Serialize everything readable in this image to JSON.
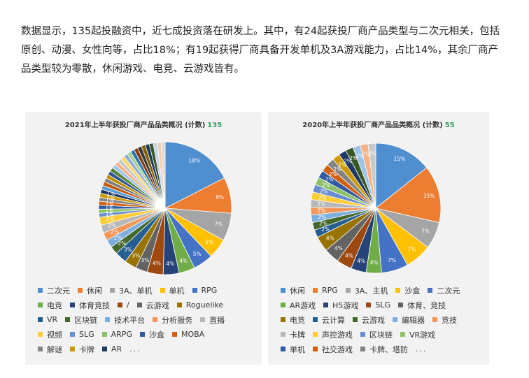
{
  "intro_text": "数据显示，135起投融资中，近七成投资落在研发上。其中，有24起获投厂商产品类型与二次元相关，包括原创、动漫、女性向等，占比18%；有19起获得厂商具备开发单机及3A游戏能力，占比14%，其余厂商产品类型较为零散，休闲游戏、电竞、云游戏皆有。",
  "chart_data": [
    {
      "type": "pie",
      "title": "2021年上半年获投厂商产品品类概况 (计数)",
      "count": "135",
      "legend_more": "...",
      "slices": [
        {
          "label": "二次元",
          "value": 18,
          "color": "#4f8fd0"
        },
        {
          "label": "休闲",
          "value": 9,
          "color": "#ed7d31"
        },
        {
          "label": "3A、单机",
          "value": 7,
          "color": "#a5a5a5"
        },
        {
          "label": "单机",
          "value": 5,
          "color": "#ffc000"
        },
        {
          "label": "RPG",
          "value": 5,
          "color": "#4472c4"
        },
        {
          "label": "电竞",
          "value": 4,
          "color": "#70ad47"
        },
        {
          "label": "体育竞技",
          "value": 4,
          "color": "#264478"
        },
        {
          "label": "/",
          "value": 4,
          "color": "#9e480e"
        },
        {
          "label": "云游戏",
          "value": 3,
          "color": "#636363"
        },
        {
          "label": "Roguelike",
          "value": 3,
          "color": "#997300"
        },
        {
          "label": "VR",
          "value": 3,
          "color": "#255e91"
        },
        {
          "label": "区块链",
          "value": 2,
          "color": "#43682b"
        },
        {
          "label": "技术平台",
          "value": 2,
          "color": "#7cafdd"
        },
        {
          "label": "分析服务",
          "value": 2,
          "color": "#f1975a"
        },
        {
          "label": "直播",
          "value": 2,
          "color": "#b7b7b7"
        },
        {
          "label": "视频",
          "value": 2,
          "color": "#ffcd33"
        },
        {
          "label": "SLG",
          "value": 1,
          "color": "#698ed0"
        },
        {
          "label": "ARPG",
          "value": 1,
          "color": "#8cc168"
        },
        {
          "label": "沙盒",
          "value": 1,
          "color": "#335aa1"
        },
        {
          "label": "MOBA",
          "value": 1,
          "color": "#d26012"
        },
        {
          "label": "解谜",
          "value": 1,
          "color": "#848484"
        },
        {
          "label": "卡牌",
          "value": 1,
          "color": "#cc9a00"
        },
        {
          "label": "AR",
          "value": 1,
          "color": "#1f3864"
        },
        {
          "label": "",
          "value": 1,
          "color": "#5b9bd5"
        },
        {
          "label": "",
          "value": 1,
          "color": "#c55a11"
        },
        {
          "label": "",
          "value": 1,
          "color": "#7f7f7f"
        },
        {
          "label": "",
          "value": 1,
          "color": "#bf9000"
        },
        {
          "label": "",
          "value": 1,
          "color": "#2f5597"
        },
        {
          "label": "",
          "value": 1,
          "color": "#548235"
        },
        {
          "label": "",
          "value": 1,
          "color": "#9dc3e6"
        },
        {
          "label": "",
          "value": 1,
          "color": "#f4b183"
        },
        {
          "label": "",
          "value": 1,
          "color": "#c9c9c9"
        },
        {
          "label": "",
          "value": 1,
          "color": "#ffd966"
        },
        {
          "label": "",
          "value": 1,
          "color": "#8faadc"
        },
        {
          "label": "",
          "value": 1,
          "color": "#a9d18e"
        },
        {
          "label": "",
          "value": 1,
          "color": "#2e75b6"
        },
        {
          "label": "",
          "value": 1,
          "color": "#843c0c"
        },
        {
          "label": "",
          "value": 1,
          "color": "#3b3838"
        },
        {
          "label": "",
          "value": 1,
          "color": "#7f6000"
        },
        {
          "label": "",
          "value": 1,
          "color": "#203864"
        },
        {
          "label": "",
          "value": 1,
          "color": "#385723"
        },
        {
          "label": "",
          "value": 1,
          "color": "#bdd7ee"
        },
        {
          "label": "",
          "value": 1,
          "color": "#f8cbad"
        },
        {
          "label": "",
          "value": 1,
          "color": "#d9d9d9"
        }
      ],
      "display_labels": [
        "18%",
        "9%",
        "7%",
        "5%",
        "5%",
        "4%",
        "4%",
        "4%",
        "3%",
        "3%",
        "3%",
        "2%",
        "2%",
        "2%",
        "2%",
        "2%",
        "1%",
        "1%",
        "1%",
        "1%",
        "1%",
        "1%",
        "1%"
      ],
      "legend_rows": [
        [
          0,
          1,
          2,
          3,
          4
        ],
        [
          5,
          6,
          7,
          8,
          9
        ],
        [
          10,
          11,
          12,
          13,
          14
        ],
        [
          15,
          16,
          17,
          18,
          19
        ],
        [
          20,
          21,
          22
        ]
      ]
    },
    {
      "type": "pie",
      "title": "2020年上半年获投厂商产品品类概况 (计数)",
      "count": "55",
      "legend_more": "...",
      "slices": [
        {
          "label": "休闲",
          "value": 15,
          "color": "#4f8fd0"
        },
        {
          "label": "RPG",
          "value": 15,
          "color": "#ed7d31"
        },
        {
          "label": "3A、主机",
          "value": 7,
          "color": "#a5a5a5"
        },
        {
          "label": "沙盒",
          "value": 7,
          "color": "#ffc000"
        },
        {
          "label": "二次元",
          "value": 7,
          "color": "#4472c4"
        },
        {
          "label": "AR游戏",
          "value": 4,
          "color": "#70ad47"
        },
        {
          "label": "H5游戏",
          "value": 4,
          "color": "#264478"
        },
        {
          "label": "SLG",
          "value": 4,
          "color": "#9e480e"
        },
        {
          "label": "体育、竞技",
          "value": 4,
          "color": "#636363"
        },
        {
          "label": "电竞",
          "value": 4,
          "color": "#997300"
        },
        {
          "label": "云计算",
          "value": 2,
          "color": "#255e91"
        },
        {
          "label": "云游戏",
          "value": 2,
          "color": "#43682b"
        },
        {
          "label": "编辑器",
          "value": 2,
          "color": "#7cafdd"
        },
        {
          "label": "竞技",
          "value": 2,
          "color": "#f1975a"
        },
        {
          "label": "卡牌",
          "value": 2,
          "color": "#b7b7b7"
        },
        {
          "label": "声控游戏",
          "value": 2,
          "color": "#ffcd33"
        },
        {
          "label": "区块链",
          "value": 2,
          "color": "#698ed0"
        },
        {
          "label": "VR游戏",
          "value": 2,
          "color": "#8cc168"
        },
        {
          "label": "单机",
          "value": 2,
          "color": "#335aa1"
        },
        {
          "label": "社交游戏",
          "value": 2,
          "color": "#d26012"
        },
        {
          "label": "卡牌、塔防",
          "value": 2,
          "color": "#848484"
        },
        {
          "label": "",
          "value": 2,
          "color": "#cc9a00"
        },
        {
          "label": "",
          "value": 2,
          "color": "#1f3864"
        },
        {
          "label": "",
          "value": 2,
          "color": "#385723"
        },
        {
          "label": "",
          "value": 2,
          "color": "#9dc3e6"
        },
        {
          "label": "",
          "value": 2,
          "color": "#f4b183"
        },
        {
          "label": "",
          "value": 2,
          "color": "#c9c9c9"
        }
      ],
      "display_labels": [
        "15%",
        "15%",
        "7%",
        "7%",
        "7%",
        "4%",
        "4%",
        "4%",
        "4%",
        "4%",
        "2%",
        "2%",
        "2%",
        "2%",
        "2%",
        "2%",
        "2%",
        "2%",
        "2%",
        "2%",
        "2%",
        "2%",
        "2%",
        "2%",
        "2%",
        "2%",
        "2%"
      ],
      "legend_rows": [
        [
          0,
          1,
          2,
          3,
          4
        ],
        [
          5,
          6,
          7,
          8
        ],
        [
          9,
          10,
          11,
          12,
          13
        ],
        [
          14,
          15,
          16,
          17
        ],
        [
          18,
          19,
          20
        ]
      ]
    }
  ]
}
